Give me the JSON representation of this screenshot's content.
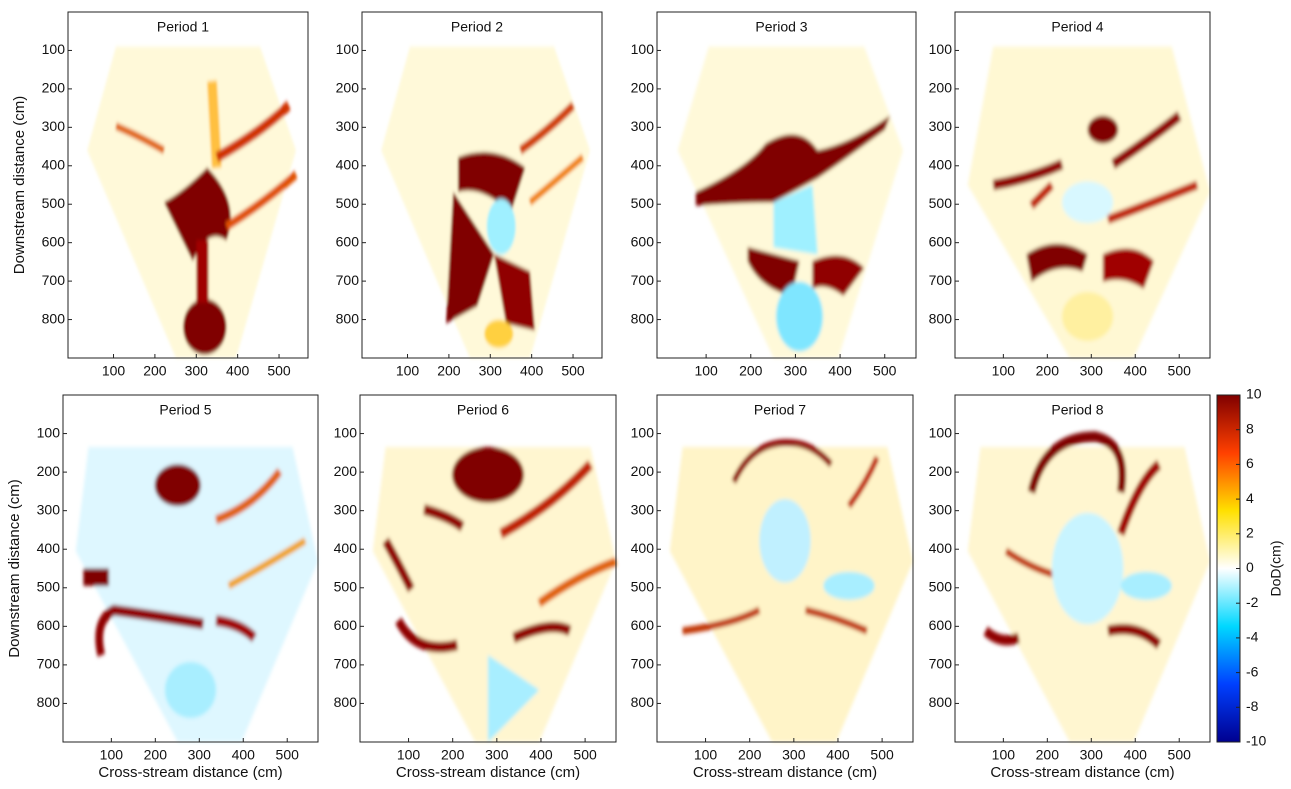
{
  "chart_data": [
    {
      "type": "heatmap",
      "title": "Period 1",
      "ylabel": "Downstream distance (cm)",
      "xlim": [
        -10,
        570
      ],
      "ylim": [
        0,
        900
      ],
      "xticks": [
        100,
        200,
        300,
        400,
        500
      ],
      "yticks": [
        100,
        200,
        300,
        400,
        500,
        600,
        700,
        800
      ]
    },
    {
      "type": "heatmap",
      "title": "Period 2",
      "xlim": [
        -10,
        570
      ],
      "ylim": [
        0,
        900
      ],
      "xticks": [
        100,
        200,
        300,
        400,
        500
      ],
      "yticks": [
        100,
        200,
        300,
        400,
        500,
        600,
        700,
        800
      ]
    },
    {
      "type": "heatmap",
      "title": "Period 3",
      "xlim": [
        -10,
        570
      ],
      "ylim": [
        0,
        900
      ],
      "xticks": [
        100,
        200,
        300,
        400,
        500
      ],
      "yticks": [
        100,
        200,
        300,
        400,
        500,
        600,
        700,
        800
      ]
    },
    {
      "type": "heatmap",
      "title": "Period 4",
      "xlim": [
        -10,
        570
      ],
      "ylim": [
        0,
        900
      ],
      "xticks": [
        100,
        200,
        300,
        400,
        500
      ],
      "yticks": [
        100,
        200,
        300,
        400,
        500,
        600,
        700,
        800
      ]
    },
    {
      "type": "heatmap",
      "title": "Period 5",
      "ylabel": "Downstream distance (cm)",
      "xlabel": "Cross-stream distance (cm)",
      "xlim": [
        -10,
        570
      ],
      "ylim": [
        0,
        900
      ],
      "xticks": [
        100,
        200,
        300,
        400,
        500
      ],
      "yticks": [
        100,
        200,
        300,
        400,
        500,
        600,
        700,
        800
      ]
    },
    {
      "type": "heatmap",
      "title": "Period 6",
      "xlabel": "Cross-stream distance (cm)",
      "xlim": [
        -10,
        570
      ],
      "ylim": [
        0,
        900
      ],
      "xticks": [
        100,
        200,
        300,
        400,
        500
      ],
      "yticks": [
        100,
        200,
        300,
        400,
        500,
        600,
        700,
        800
      ]
    },
    {
      "type": "heatmap",
      "title": "Period 7",
      "xlabel": "Cross-stream distance (cm)",
      "xlim": [
        -10,
        570
      ],
      "ylim": [
        0,
        900
      ],
      "xticks": [
        100,
        200,
        300,
        400,
        500
      ],
      "yticks": [
        100,
        200,
        300,
        400,
        500,
        600,
        700,
        800
      ]
    },
    {
      "type": "heatmap",
      "title": "Period 8",
      "xlabel": "Cross-stream distance (cm)",
      "xlim": [
        -10,
        570
      ],
      "ylim": [
        0,
        900
      ],
      "xticks": [
        100,
        200,
        300,
        400,
        500
      ],
      "yticks": [
        100,
        200,
        300,
        400,
        500,
        600,
        700,
        800
      ],
      "zlabel": "DoD(cm)",
      "zlim": [
        -10,
        10
      ],
      "zticks": [
        -10,
        -8,
        -6,
        -4,
        -2,
        0,
        2,
        4,
        6,
        8,
        10
      ],
      "colormap": [
        "#00008f",
        "#0040ff",
        "#00d8ff",
        "#ffffff",
        "#ffe000",
        "#ff4000",
        "#800000"
      ]
    }
  ]
}
